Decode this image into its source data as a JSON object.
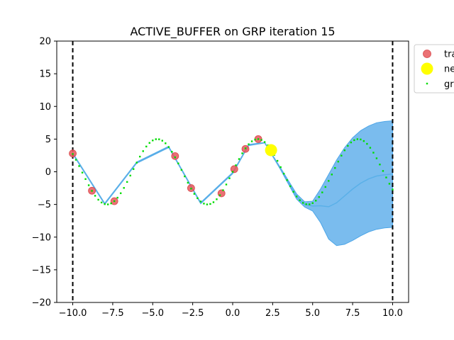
{
  "chart_data": {
    "type": "scatter",
    "title": "ACTIVE_BUFFER on GRP iteration 15",
    "xlabel": "",
    "ylabel": "",
    "xlim": [
      -11,
      11
    ],
    "ylim": [
      -20,
      20
    ],
    "xticks": [
      -10.0,
      -7.5,
      -5.0,
      -2.5,
      0.0,
      2.5,
      5.0,
      7.5,
      10.0
    ],
    "xtick_labels": [
      "−10.0",
      "−7.5",
      "−5.0",
      "−2.5",
      "0.0",
      "2.5",
      "5.0",
      "7.5",
      "10.0"
    ],
    "yticks": [
      -20,
      -15,
      -10,
      -5,
      0,
      5,
      10,
      15,
      20
    ],
    "ytick_labels": [
      "−20",
      "−15",
      "−10",
      "−5",
      "0",
      "5",
      "10",
      "15",
      "20"
    ],
    "grid": false,
    "legend_position": "outside-top-right",
    "bounds": [
      -10,
      10
    ],
    "series": [
      {
        "name": "tra",
        "kind": "points",
        "color": "#e8585c",
        "x": [
          -10.0,
          -8.8,
          -7.4,
          -3.6,
          -2.6,
          -0.7,
          0.1,
          0.8,
          1.6
        ],
        "y": [
          2.8,
          -2.9,
          -4.5,
          2.4,
          -2.5,
          -3.3,
          0.4,
          3.5,
          5.0
        ]
      },
      {
        "name": "ne",
        "kind": "points",
        "color": "#ffff00",
        "x": [
          2.4
        ],
        "y": [
          3.3
        ]
      },
      {
        "name": "gr",
        "kind": "dotted-line",
        "color": "#00dd00",
        "x_range": [
          -10,
          10
        ],
        "count": 101,
        "function": "5*sin(x)"
      }
    ],
    "band": {
      "color": "#4da6e8",
      "x": [
        -10,
        -8,
        -6,
        -4,
        -2,
        0,
        1,
        2,
        3,
        4,
        4.5,
        5,
        5.5,
        6,
        6.5,
        7,
        7.5,
        8,
        8.5,
        9,
        9.5,
        10
      ],
      "upper": [
        2.9,
        -4.8,
        1.5,
        3.9,
        -4.7,
        -0.1,
        4.2,
        4.5,
        0.6,
        -3.4,
        -4.6,
        -4.5,
        -2.6,
        -0.4,
        1.8,
        3.7,
        5.2,
        6.3,
        7.0,
        7.5,
        7.7,
        7.8
      ],
      "lower": [
        2.7,
        -5.0,
        1.3,
        3.7,
        -4.9,
        -0.3,
        4.0,
        4.4,
        0.3,
        -4.2,
        -5.4,
        -6.0,
        -7.8,
        -10.3,
        -11.3,
        -11.1,
        -10.5,
        -9.8,
        -9.2,
        -8.8,
        -8.6,
        -8.5
      ]
    }
  }
}
